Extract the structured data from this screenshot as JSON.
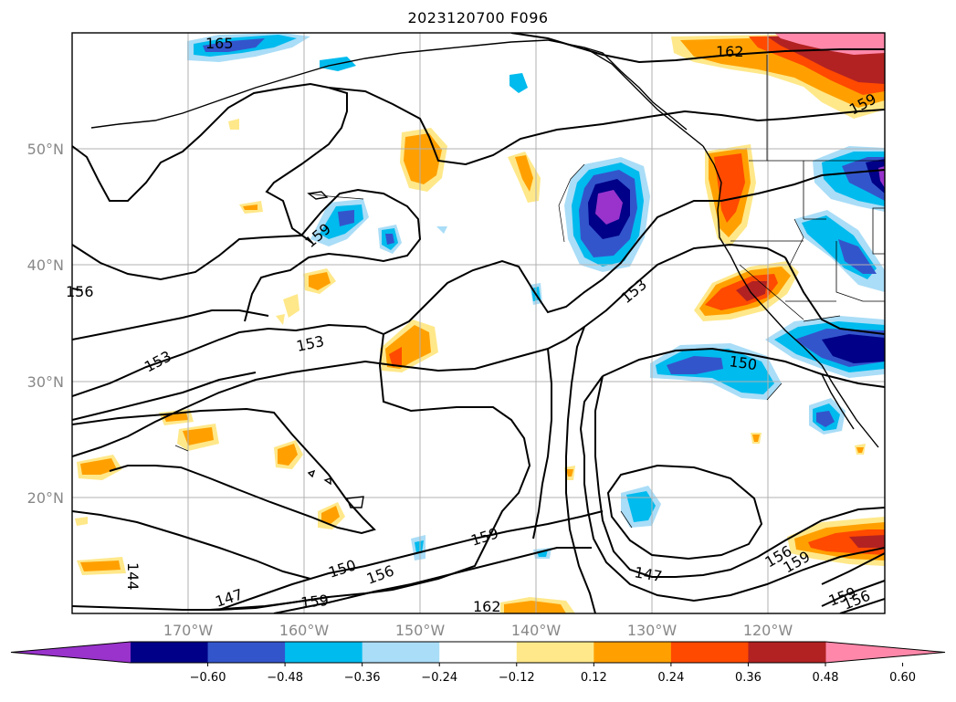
{
  "map": {
    "title": "2023120700 F096",
    "lat_ticks": [
      "50°N",
      "40°N",
      "30°N",
      "20°N"
    ],
    "lon_ticks": [
      "170°W",
      "160°W",
      "150°W",
      "140°W",
      "130°W",
      "120°W"
    ],
    "contour_labels": [
      "165",
      "162",
      "159",
      "159",
      "156",
      "153",
      "153",
      "153",
      "150",
      "159",
      "150",
      "156",
      "147",
      "159",
      "162",
      "147",
      "156",
      "159",
      "159",
      "156",
      "144"
    ],
    "colorbar": {
      "tick_labels": [
        "−0.60",
        "−0.48",
        "−0.36",
        "−0.24",
        "−0.12",
        "0.12",
        "0.24",
        "0.36",
        "0.48",
        "0.60"
      ],
      "colors": [
        "#9933cc",
        "#000088",
        "#3355cc",
        "#00bbee",
        "#aaddf7",
        "#ffffff",
        "#ffe88a",
        "#ffa000",
        "#ff4a00",
        "#b22222",
        "#ff88aa"
      ]
    },
    "colors": {
      "coast": "#000000",
      "grid": "#b0b0b0",
      "axis_text": "#888888"
    }
  }
}
